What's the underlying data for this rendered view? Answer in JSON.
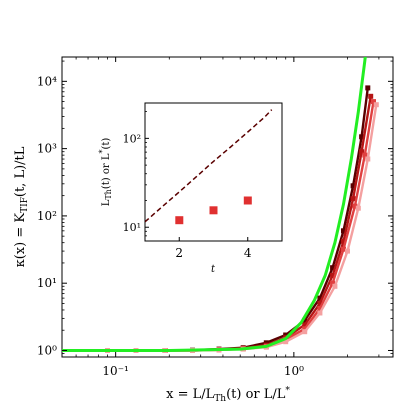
{
  "chart_data": [
    {
      "type": "line",
      "xlabel": "x = L/L_Th(t) or L/L*",
      "ylabel": "κ(x) = K_TIF(t,L)/tL",
      "xscale": "log",
      "yscale": "log",
      "xlim": [
        0.05,
        3.6
      ],
      "ylim": [
        0.8,
        23000
      ],
      "xticks": [
        {
          "value": 0.1,
          "label": "10⁻¹"
        },
        {
          "value": 1,
          "label": "10⁰"
        }
      ],
      "yticks": [
        {
          "value": 1,
          "label": "10⁰"
        },
        {
          "value": 10,
          "label": "10¹"
        },
        {
          "value": 100,
          "label": "10²"
        },
        {
          "value": 1000,
          "label": "10³"
        },
        {
          "value": 10000,
          "label": "10⁴"
        }
      ],
      "grid": false,
      "legend": "none",
      "series": [
        {
          "color": "#22ee22",
          "x": [
            0.05,
            0.2,
            0.5,
            0.7,
            0.9,
            1.1,
            1.3,
            1.5,
            1.7,
            1.9,
            2.1,
            2.3,
            2.5,
            2.7
          ],
          "y": [
            1.0,
            1.0,
            1.05,
            1.15,
            1.5,
            2.6,
            5.5,
            13,
            40,
            150,
            700,
            3500,
            20000,
            120000
          ]
        },
        {
          "color": "#5a0000",
          "x": [
            0.09,
            0.13,
            0.19,
            0.27,
            0.38,
            0.52,
            0.7,
            0.9,
            1.15,
            1.4,
            1.65,
            1.9,
            2.15,
            2.4,
            2.6
          ],
          "y": [
            1.0,
            1.0,
            1.0,
            1.01,
            1.05,
            1.1,
            1.3,
            1.7,
            2.8,
            6,
            17,
            60,
            280,
            1500,
            8000
          ]
        },
        {
          "color": "#b51515",
          "x": [
            0.09,
            0.13,
            0.19,
            0.27,
            0.38,
            0.52,
            0.7,
            0.9,
            1.15,
            1.4,
            1.65,
            1.9,
            2.15,
            2.4,
            2.7
          ],
          "y": [
            1.0,
            1.0,
            1.0,
            1.0,
            1.03,
            1.08,
            1.2,
            1.55,
            2.4,
            5,
            13,
            42,
            180,
            900,
            6000
          ]
        },
        {
          "color": "#e04040",
          "x": [
            0.09,
            0.13,
            0.19,
            0.27,
            0.38,
            0.52,
            0.7,
            0.9,
            1.15,
            1.4,
            1.65,
            1.9,
            2.2,
            2.5,
            2.8
          ],
          "y": [
            1.0,
            1.0,
            1.0,
            1.0,
            1.02,
            1.06,
            1.15,
            1.45,
            2.1,
            4.2,
            10,
            32,
            140,
            800,
            5000
          ]
        },
        {
          "color": "#f4a0a0",
          "x": [
            0.09,
            0.13,
            0.19,
            0.27,
            0.38,
            0.52,
            0.7,
            0.9,
            1.15,
            1.4,
            1.7,
            2.0,
            2.3,
            2.6,
            2.9
          ],
          "y": [
            1.0,
            1.0,
            1.0,
            1.0,
            1.02,
            1.05,
            1.12,
            1.35,
            1.9,
            3.6,
            9,
            30,
            130,
            700,
            4500
          ]
        }
      ]
    },
    {
      "type": "scatter",
      "xlabel": "t",
      "ylabel": "L_Th(t) or L*(t)",
      "xscale": "linear",
      "yscale": "log",
      "xlim": [
        1.0,
        5.0
      ],
      "ylim": [
        7.0,
        250
      ],
      "xticks": [
        {
          "value": 2,
          "label": "2"
        },
        {
          "value": 4,
          "label": "4"
        }
      ],
      "yticks": [
        {
          "value": 10,
          "label": "10¹"
        },
        {
          "value": 100,
          "label": "10²"
        }
      ],
      "series": [
        {
          "color": "#e03030",
          "marker": "square",
          "x": [
            2,
            3,
            4
          ],
          "y": [
            12.0,
            15.5,
            20.0
          ]
        },
        {
          "color": "#5a0000",
          "style": "dashed",
          "x": [
            1.0,
            1.5,
            2.0,
            2.5,
            3.0,
            3.5,
            4.0,
            4.5,
            4.7
          ],
          "y": [
            11.5,
            17,
            25,
            37,
            55,
            80,
            118,
            175,
            210
          ]
        }
      ]
    }
  ]
}
